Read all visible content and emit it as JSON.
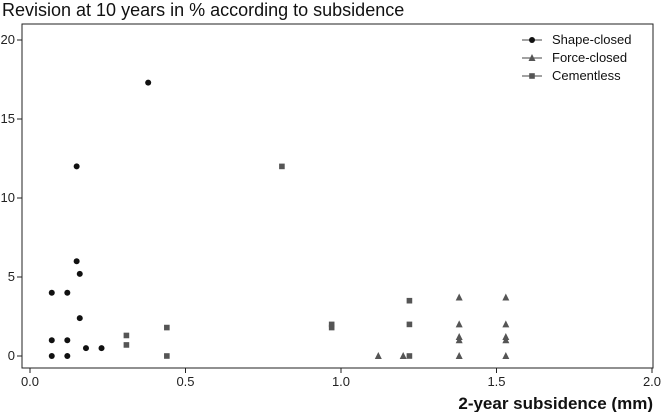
{
  "chart_data": {
    "type": "scatter",
    "title": "Revision at 10 years in % according to subsidence",
    "xlabel": "2-year subsidence (mm)",
    "ylabel": "",
    "xlim": [
      0.0,
      2.0
    ],
    "ylim": [
      0,
      21
    ],
    "x_ticks": [
      "0.0",
      "0.5",
      "1.0",
      "1.5",
      "2.0"
    ],
    "y_ticks": [
      "0",
      "5",
      "10",
      "15",
      "20"
    ],
    "grid": false,
    "legend_position": "top-right",
    "series": [
      {
        "name": "Shape-closed",
        "marker": "circle",
        "color": "#111111",
        "points": [
          [
            0.07,
            4.0
          ],
          [
            0.07,
            1.0
          ],
          [
            0.07,
            0.0
          ],
          [
            0.12,
            4.0
          ],
          [
            0.12,
            1.0
          ],
          [
            0.12,
            0.0
          ],
          [
            0.15,
            12.0
          ],
          [
            0.15,
            6.0
          ],
          [
            0.16,
            5.2
          ],
          [
            0.16,
            2.4
          ],
          [
            0.18,
            0.5
          ],
          [
            0.23,
            0.5
          ],
          [
            0.38,
            17.3
          ]
        ]
      },
      {
        "name": "Force-closed",
        "marker": "triangle",
        "color": "#555555",
        "points": [
          [
            1.12,
            0.0
          ],
          [
            1.2,
            0.0
          ],
          [
            1.38,
            3.7
          ],
          [
            1.38,
            2.0
          ],
          [
            1.38,
            1.2
          ],
          [
            1.38,
            1.0
          ],
          [
            1.38,
            0.0
          ],
          [
            1.53,
            3.7
          ],
          [
            1.53,
            2.0
          ],
          [
            1.53,
            1.2
          ],
          [
            1.53,
            1.0
          ],
          [
            1.53,
            0.0
          ]
        ]
      },
      {
        "name": "Cementless",
        "marker": "square",
        "color": "#555555",
        "points": [
          [
            0.31,
            1.3
          ],
          [
            0.31,
            0.7
          ],
          [
            0.44,
            1.8
          ],
          [
            0.44,
            0.0
          ],
          [
            0.81,
            12.0
          ],
          [
            0.97,
            2.0
          ],
          [
            0.97,
            1.8
          ],
          [
            1.22,
            3.5
          ],
          [
            1.22,
            2.0
          ],
          [
            1.22,
            0.0
          ]
        ]
      }
    ]
  }
}
